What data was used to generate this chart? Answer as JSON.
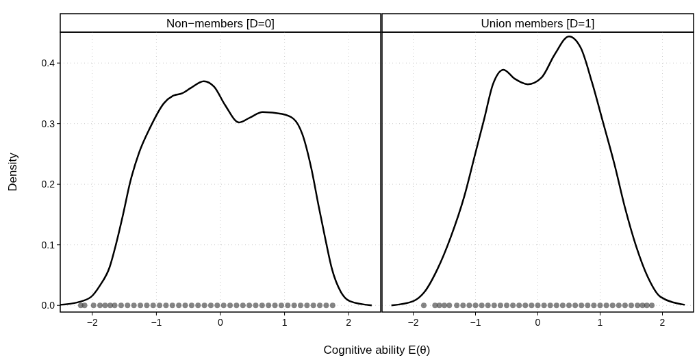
{
  "chart_data": [
    {
      "type": "line",
      "title": "Non−members [D=0]",
      "xlabel": "Cognitive ability E(θ)",
      "ylabel": "Density",
      "xlim": [
        -2.5,
        2.5
      ],
      "ylim": [
        -0.011,
        0.451
      ],
      "xticks": [
        -2,
        -1,
        0,
        1,
        2
      ],
      "yticks": [
        {
          "value": 0,
          "label": "0.0"
        },
        0.1,
        0.2,
        0.3,
        0.4
      ],
      "grid": true,
      "series": [
        {
          "color": "#000000",
          "line_style": "solid",
          "x": [
            -2.5,
            -2.23,
            -2.02,
            -1.88,
            -1.73,
            -1.63,
            -1.52,
            -1.41,
            -1.27,
            -1.1,
            -0.88,
            -0.74,
            -0.6,
            -0.46,
            -0.26,
            -0.1,
            0.07,
            0.29,
            0.46,
            0.66,
            0.96,
            1.14,
            1.28,
            1.42,
            1.53,
            1.64,
            1.74,
            1.88,
            2.02,
            2.36
          ],
          "values": [
            0.001,
            0.005,
            0.014,
            0.033,
            0.063,
            0.101,
            0.15,
            0.203,
            0.252,
            0.293,
            0.334,
            0.346,
            0.35,
            0.359,
            0.37,
            0.361,
            0.331,
            0.302,
            0.31,
            0.319,
            0.316,
            0.308,
            0.282,
            0.225,
            0.165,
            0.108,
            0.06,
            0.022,
            0.007,
            0
          ]
        },
        {
          "type": "scatter",
          "color": "#333333",
          "marker": "circle",
          "x": [
            -2.18,
            -2.12,
            -1.98,
            -1.88,
            -1.8,
            -1.72,
            -1.65,
            -1.55,
            -1.45,
            -1.35,
            -1.25,
            -1.15,
            -1.05,
            -0.95,
            -0.85,
            -0.75,
            -0.65,
            -0.55,
            -0.45,
            -0.35,
            -0.25,
            -0.15,
            -0.05,
            0.05,
            0.15,
            0.25,
            0.35,
            0.45,
            0.55,
            0.65,
            0.75,
            0.85,
            0.95,
            1.05,
            1.15,
            1.25,
            1.35,
            1.45,
            1.55,
            1.65,
            1.75
          ],
          "values": [
            0,
            0,
            0,
            0,
            0,
            0,
            0,
            0,
            0,
            0,
            0,
            0,
            0,
            0,
            0,
            0,
            0,
            0,
            0,
            0,
            0,
            0,
            0,
            0,
            0,
            0,
            0,
            0,
            0,
            0,
            0,
            0,
            0,
            0,
            0,
            0,
            0,
            0,
            0,
            0,
            0
          ]
        }
      ]
    },
    {
      "type": "line",
      "title": "Union members [D=1]",
      "xlim": [
        -2.5,
        2.5
      ],
      "ylim": [
        -0.011,
        0.451
      ],
      "xticks": [
        -2,
        -1,
        0,
        1,
        2
      ],
      "yticks": [
        0,
        0.1,
        0.2,
        0.3,
        0.4
      ],
      "grid": true,
      "tick_labels": "x",
      "series": [
        {
          "color": "#000000",
          "line_style": "solid",
          "x": [
            -2.35,
            -2.0,
            -1.82,
            -1.61,
            -1.4,
            -1.18,
            -1.01,
            -0.86,
            -0.72,
            -0.55,
            -0.37,
            -0.16,
            0.06,
            0.27,
            0.5,
            0.69,
            0.87,
            1.05,
            1.23,
            1.4,
            1.58,
            1.76,
            1.97,
            2.36
          ],
          "values": [
            0,
            0.007,
            0.022,
            0.06,
            0.112,
            0.18,
            0.248,
            0.308,
            0.365,
            0.389,
            0.374,
            0.365,
            0.376,
            0.414,
            0.444,
            0.425,
            0.368,
            0.301,
            0.233,
            0.161,
            0.097,
            0.048,
            0.014,
            0.001
          ]
        },
        {
          "type": "scatter",
          "color": "#333333",
          "marker": "circle",
          "x": [
            -1.83,
            -1.65,
            -1.58,
            -1.5,
            -1.42,
            -1.3,
            -1.2,
            -1.1,
            -1.0,
            -0.9,
            -0.8,
            -0.7,
            -0.6,
            -0.5,
            -0.4,
            -0.3,
            -0.2,
            -0.1,
            0,
            0.1,
            0.2,
            0.3,
            0.4,
            0.5,
            0.6,
            0.7,
            0.8,
            0.9,
            1.0,
            1.1,
            1.2,
            1.3,
            1.4,
            1.5,
            1.6,
            1.68,
            1.75,
            1.83
          ],
          "values": [
            0,
            0,
            0,
            0,
            0,
            0,
            0,
            0,
            0,
            0,
            0,
            0,
            0,
            0,
            0,
            0,
            0,
            0,
            0,
            0,
            0,
            0,
            0,
            0,
            0,
            0,
            0,
            0,
            0,
            0,
            0,
            0,
            0,
            0,
            0,
            0,
            0,
            0
          ]
        }
      ]
    }
  ]
}
